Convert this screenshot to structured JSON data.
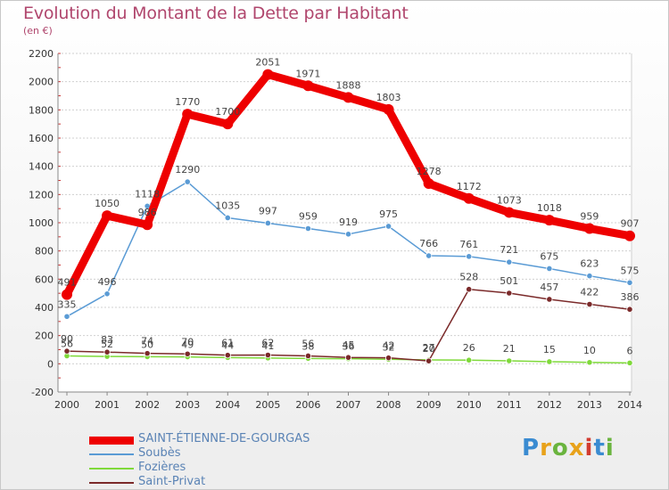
{
  "header": {
    "title": "Evolution du Montant de la Dette par Habitant",
    "unit": "(en €)"
  },
  "logo": {
    "text": "Proxiti",
    "colors": [
      "#3a8bd1",
      "#e8a21b",
      "#6ab43e",
      "#e8a21b",
      "#d23b2f",
      "#3a8bd1",
      "#6ab43e"
    ]
  },
  "chart_data": {
    "type": "line",
    "title": "Evolution du Montant de la Dette par Habitant",
    "subtitle": "(en €)",
    "xlabel": "",
    "ylabel": "",
    "x": [
      2000,
      2001,
      2002,
      2003,
      2004,
      2005,
      2006,
      2007,
      2008,
      2009,
      2010,
      2011,
      2012,
      2013,
      2014
    ],
    "ylim": [
      -200,
      2200
    ],
    "yticks": [
      -200,
      0,
      200,
      400,
      600,
      800,
      1000,
      1200,
      1400,
      1600,
      1800,
      2000,
      2200
    ],
    "grid": true,
    "legend_position": "bottom-left",
    "series": [
      {
        "name": "SAINT-ÉTIENNE-DE-GOURGAS",
        "color": "#ee0000",
        "style": "thick",
        "values": [
          491,
          1050,
          986,
          1770,
          1700,
          2051,
          1971,
          1888,
          1803,
          1278,
          1172,
          1073,
          1018,
          959,
          907
        ],
        "labels": [
          "491",
          "1050",
          "986",
          "1770",
          "1700",
          "2051",
          "1971",
          "1888",
          "1803",
          "1278",
          "1172",
          "1073",
          "1018",
          "959",
          "907"
        ]
      },
      {
        "name": "Soubès",
        "color": "#5a9bd5",
        "style": "thin",
        "values": [
          335,
          496,
          1118,
          1290,
          1035,
          997,
          959,
          919,
          975,
          766,
          761,
          721,
          675,
          623,
          575
        ],
        "labels": [
          "335",
          "496",
          "1118",
          "1290",
          "1035",
          "997",
          "959",
          "919",
          "975",
          "766",
          "761",
          "721",
          "675",
          "623",
          "575"
        ]
      },
      {
        "name": "Fozières",
        "color": "#7fd93a",
        "style": "thin",
        "values": [
          56,
          52,
          50,
          49,
          44,
          41,
          38,
          36,
          32,
          27,
          26,
          21,
          15,
          10,
          6
        ],
        "labels": [
          "56",
          "52",
          "50",
          "49",
          "44",
          "41",
          "38",
          "36",
          "32",
          "27",
          "26",
          "21",
          "15",
          "10",
          "6"
        ]
      },
      {
        "name": "Saint-Privat",
        "color": "#7b2a2a",
        "style": "thin",
        "values": [
          90,
          83,
          74,
          70,
          61,
          62,
          56,
          45,
          42,
          20,
          528,
          501,
          457,
          422,
          386
        ],
        "labels": [
          "90",
          "83",
          "74",
          "70",
          "61",
          "62",
          "56",
          "45",
          "42",
          "20",
          "528",
          "501",
          "457",
          "422",
          "386"
        ]
      }
    ]
  }
}
